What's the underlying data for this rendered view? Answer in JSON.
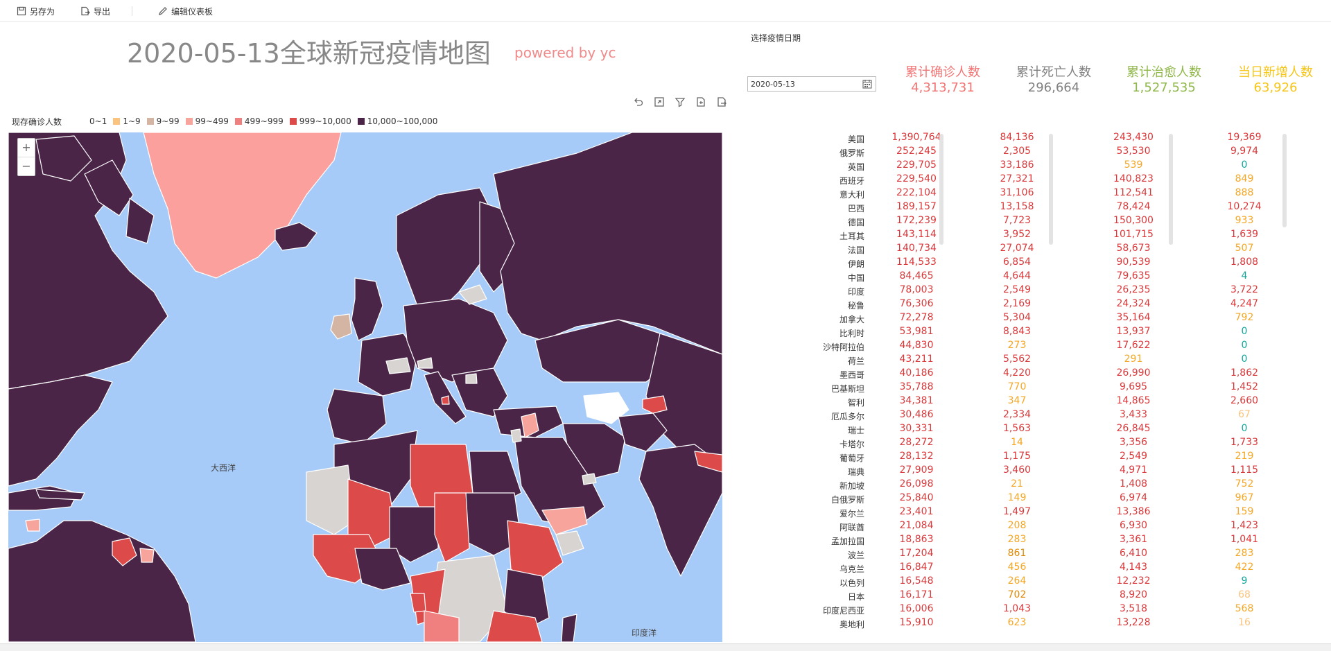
{
  "toolbar": {
    "save_as": "另存为",
    "export": "导出",
    "edit_dashboard": "编辑仪表板"
  },
  "header": {
    "title": "2020-05-13全球新冠疫情地图",
    "powered": "powered by yc"
  },
  "legend": {
    "title": "现存确诊人数",
    "items": [
      {
        "label": "0~1",
        "color": "#ffffff"
      },
      {
        "label": "1~9",
        "color": "#fac47f"
      },
      {
        "label": "9~99",
        "color": "#d4b5a3"
      },
      {
        "label": "99~499",
        "color": "#f7a59c"
      },
      {
        "label": "499~999",
        "color": "#f08080"
      },
      {
        "label": "999~10,000",
        "color": "#dc4a4a"
      },
      {
        "label": "10,000~100,000",
        "color": "#4a2548"
      }
    ]
  },
  "map": {
    "zoom_in": "+",
    "zoom_out": "−",
    "atlantic": "大西洋",
    "indian": "印度洋",
    "colors": {
      "ocean": "#a6cbf8",
      "dark": "#4a2548",
      "red": "#dc4a4a",
      "pink": "#f7a59c",
      "gray": "#d8d4d2",
      "greenland": "#fca09e"
    }
  },
  "controls": {
    "date_label": "选择疫情日期",
    "date_value": "2020-05-13"
  },
  "stats": [
    {
      "label": "累计确诊人数",
      "value": "4,313,731",
      "color": "#f27474"
    },
    {
      "label": "累计死亡人数",
      "value": "296,664",
      "color": "#808080"
    },
    {
      "label": "累计治愈人数",
      "value": "1,527,535",
      "color": "#8fb74a"
    },
    {
      "label": "当日新增人数",
      "value": "63,926",
      "color": "#f5c518"
    }
  ],
  "colors": {
    "orange": "#f5a623",
    "light_orange": "#fac47f",
    "teal": "#11a59a",
    "red": "#d9383a"
  },
  "rows": [
    {
      "name": "美国",
      "confirmed": "1,390,764",
      "deaths": "84,136",
      "recovered": "243,430",
      "new": "19,369"
    },
    {
      "name": "俄罗斯",
      "confirmed": "252,245",
      "deaths": "2,305",
      "recovered": "53,530",
      "new": "9,974"
    },
    {
      "name": "英国",
      "confirmed": "229,705",
      "deaths": "33,186",
      "recovered": "539",
      "new": "0"
    },
    {
      "name": "西班牙",
      "confirmed": "229,540",
      "deaths": "27,321",
      "recovered": "140,823",
      "new": "849"
    },
    {
      "name": "意大利",
      "confirmed": "222,104",
      "deaths": "31,106",
      "recovered": "112,541",
      "new": "888"
    },
    {
      "name": "巴西",
      "confirmed": "189,157",
      "deaths": "13,158",
      "recovered": "78,424",
      "new": "10,274"
    },
    {
      "name": "德国",
      "confirmed": "172,239",
      "deaths": "7,723",
      "recovered": "150,300",
      "new": "933"
    },
    {
      "name": "土耳其",
      "confirmed": "143,114",
      "deaths": "3,952",
      "recovered": "101,715",
      "new": "1,639"
    },
    {
      "name": "法国",
      "confirmed": "140,734",
      "deaths": "27,074",
      "recovered": "58,673",
      "new": "507"
    },
    {
      "name": "伊朗",
      "confirmed": "114,533",
      "deaths": "6,854",
      "recovered": "90,539",
      "new": "1,808"
    },
    {
      "name": "中国",
      "confirmed": "84,465",
      "deaths": "4,644",
      "recovered": "79,635",
      "new": "4"
    },
    {
      "name": "印度",
      "confirmed": "78,003",
      "deaths": "2,549",
      "recovered": "26,235",
      "new": "3,722"
    },
    {
      "name": "秘鲁",
      "confirmed": "76,306",
      "deaths": "2,169",
      "recovered": "24,324",
      "new": "4,247"
    },
    {
      "name": "加拿大",
      "confirmed": "72,278",
      "deaths": "5,304",
      "recovered": "35,164",
      "new": "792"
    },
    {
      "name": "比利时",
      "confirmed": "53,981",
      "deaths": "8,843",
      "recovered": "13,937",
      "new": "0"
    },
    {
      "name": "沙特阿拉伯",
      "confirmed": "44,830",
      "deaths": "273",
      "recovered": "17,622",
      "new": "0"
    },
    {
      "name": "荷兰",
      "confirmed": "43,211",
      "deaths": "5,562",
      "recovered": "291",
      "new": "0"
    },
    {
      "name": "墨西哥",
      "confirmed": "40,186",
      "deaths": "4,220",
      "recovered": "26,990",
      "new": "1,862"
    },
    {
      "name": "巴基斯坦",
      "confirmed": "35,788",
      "deaths": "770",
      "recovered": "9,695",
      "new": "1,452"
    },
    {
      "name": "智利",
      "confirmed": "34,381",
      "deaths": "347",
      "recovered": "14,865",
      "new": "2,660"
    },
    {
      "name": "厄瓜多尔",
      "confirmed": "30,486",
      "deaths": "2,334",
      "recovered": "3,433",
      "new": "67"
    },
    {
      "name": "瑞士",
      "confirmed": "30,331",
      "deaths": "1,563",
      "recovered": "26,845",
      "new": "0"
    },
    {
      "name": "卡塔尔",
      "confirmed": "28,272",
      "deaths": "14",
      "recovered": "3,356",
      "new": "1,733"
    },
    {
      "name": "葡萄牙",
      "confirmed": "28,132",
      "deaths": "1,175",
      "recovered": "2,549",
      "new": "219"
    },
    {
      "name": "瑞典",
      "confirmed": "27,909",
      "deaths": "3,460",
      "recovered": "4,971",
      "new": "1,115"
    },
    {
      "name": "新加坡",
      "confirmed": "26,098",
      "deaths": "21",
      "recovered": "1,408",
      "new": "752"
    },
    {
      "name": "白俄罗斯",
      "confirmed": "25,840",
      "deaths": "149",
      "recovered": "6,974",
      "new": "967"
    },
    {
      "name": "爱尔兰",
      "confirmed": "23,401",
      "deaths": "1,497",
      "recovered": "13,386",
      "new": "159"
    },
    {
      "name": "阿联酋",
      "confirmed": "21,084",
      "deaths": "208",
      "recovered": "6,930",
      "new": "1,423"
    },
    {
      "name": "孟加拉国",
      "confirmed": "18,863",
      "deaths": "283",
      "recovered": "3,361",
      "new": "1,041"
    },
    {
      "name": "波兰",
      "confirmed": "17,204",
      "deaths": "861",
      "recovered": "6,410",
      "new": "283"
    },
    {
      "name": "乌克兰",
      "confirmed": "16,847",
      "deaths": "456",
      "recovered": "4,143",
      "new": "422"
    },
    {
      "name": "以色列",
      "confirmed": "16,548",
      "deaths": "264",
      "recovered": "12,232",
      "new": "9"
    },
    {
      "name": "日本",
      "confirmed": "16,171",
      "deaths": "702",
      "recovered": "8,920",
      "new": "68"
    },
    {
      "name": "印度尼西亚",
      "confirmed": "16,006",
      "deaths": "1,043",
      "recovered": "3,518",
      "new": "568"
    },
    {
      "name": "奥地利",
      "confirmed": "15,910",
      "deaths": "623",
      "recovered": "13,228",
      "new": "16"
    }
  ]
}
